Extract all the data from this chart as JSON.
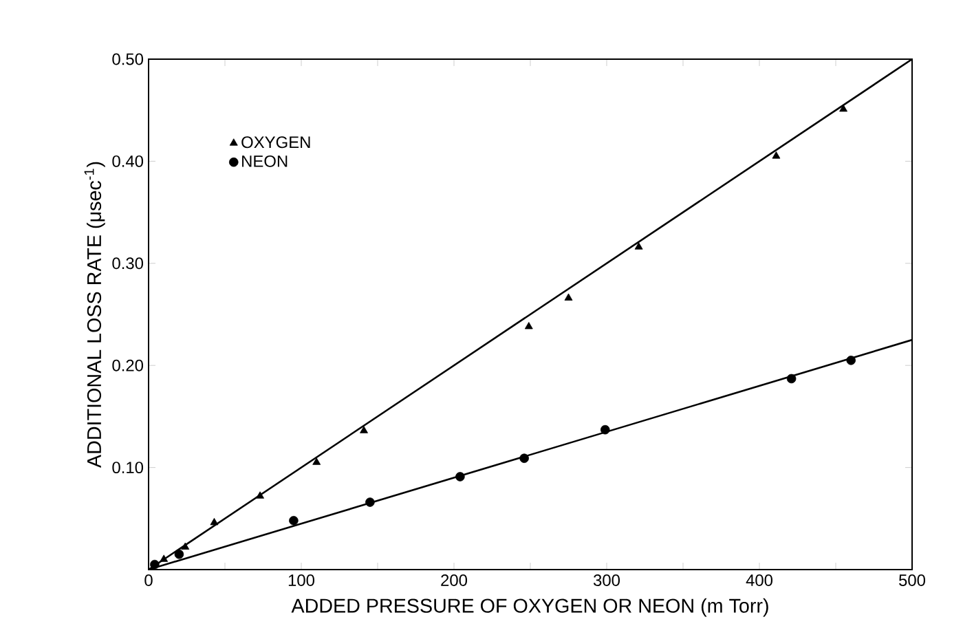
{
  "chart_data": {
    "type": "scatter",
    "xlabel": "ADDED PRESSURE OF OXYGEN OR NEON (m Torr)",
    "ylabel": "ADDITIONAL LOSS RATE (μsec$^{-1}$)",
    "xlim": [
      0,
      500
    ],
    "ylim": [
      0,
      0.5
    ],
    "xticks": [
      0,
      {
        "value": 50,
        "label": null
      },
      100,
      {
        "value": 150,
        "label": null
      },
      200,
      {
        "value": 250,
        "label": null
      },
      300,
      {
        "value": 350,
        "label": null
      },
      400,
      {
        "value": 450,
        "label": null
      },
      500
    ],
    "yticks": [
      {
        "value": 0.1,
        "label": "0.10"
      },
      {
        "value": 0.2,
        "label": "0.20"
      },
      {
        "value": 0.3,
        "label": "0.30"
      },
      {
        "value": 0.4,
        "label": "0.40"
      },
      {
        "value": 0.5,
        "label": "0.50"
      }
    ],
    "grid": false,
    "legend": "top left",
    "series": [
      {
        "name": "OXYGEN",
        "marker": "triangle",
        "color": "#000000",
        "x": [
          10,
          24,
          43,
          73,
          110,
          141,
          249,
          275,
          321,
          411,
          455
        ],
        "values": [
          0.01,
          0.022,
          0.046,
          0.072,
          0.105,
          0.136,
          0.238,
          0.266,
          0.316,
          0.405,
          0.451
        ]
      },
      {
        "name": "NEON",
        "marker": "circle",
        "color": "#000000",
        "x": [
          4,
          20,
          95,
          145,
          204,
          246,
          299,
          421,
          460
        ],
        "values": [
          0.005,
          0.015,
          0.048,
          0.066,
          0.091,
          0.109,
          0.137,
          0.187,
          0.205
        ]
      },
      {
        "type": "line",
        "marker": "none",
        "color": "#000000",
        "x": [
          0,
          500
        ],
        "values": [
          0,
          0.5
        ]
      },
      {
        "type": "line",
        "marker": "none",
        "color": "#000000",
        "x": [
          0,
          500
        ],
        "values": [
          0,
          0.225
        ]
      }
    ]
  }
}
